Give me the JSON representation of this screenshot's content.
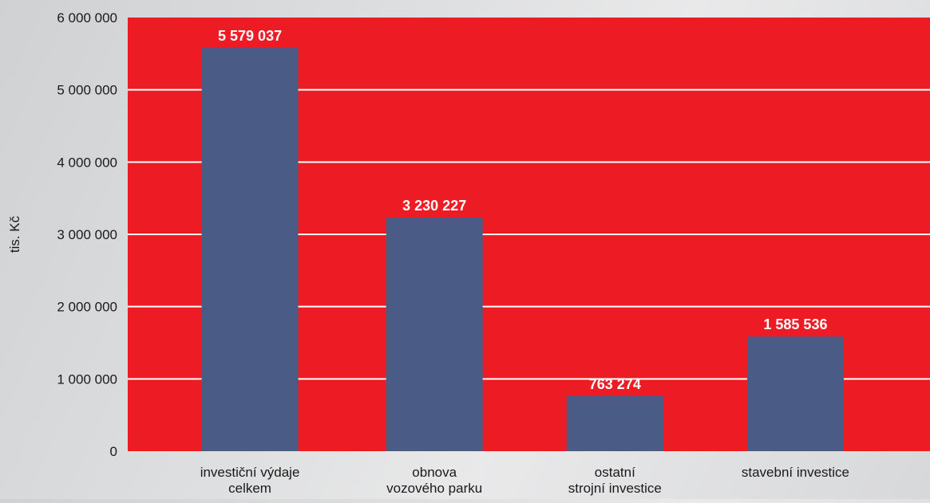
{
  "chart_data": {
    "type": "bar",
    "title": "",
    "xlabel": "",
    "ylabel": "tis. Kč",
    "ylim": [
      0,
      6000000
    ],
    "yticks": [
      0,
      1000000,
      2000000,
      3000000,
      4000000,
      5000000,
      6000000
    ],
    "ytick_labels": [
      "0",
      "1 000 000",
      "2 000 000",
      "3 000 000",
      "4 000 000",
      "5 000 000",
      "6 000 000"
    ],
    "grid": true,
    "legend": "none",
    "categories": [
      [
        "investiční výdaje",
        "celkem"
      ],
      [
        "obnova",
        "vozového parku"
      ],
      [
        "ostatní",
        "strojní investice"
      ],
      [
        "stavební investice"
      ]
    ],
    "values": [
      5579037,
      3230227,
      763274,
      1585536
    ],
    "value_labels": [
      "5 579 037",
      "3 230 227",
      "763 274",
      "1 585 536"
    ],
    "colors": {
      "plot_background": "#ed1c24",
      "bar": "#4a5b85",
      "gridline": "#ffffff",
      "value_label": "#ffffff",
      "text": "#1a1a1a"
    }
  }
}
